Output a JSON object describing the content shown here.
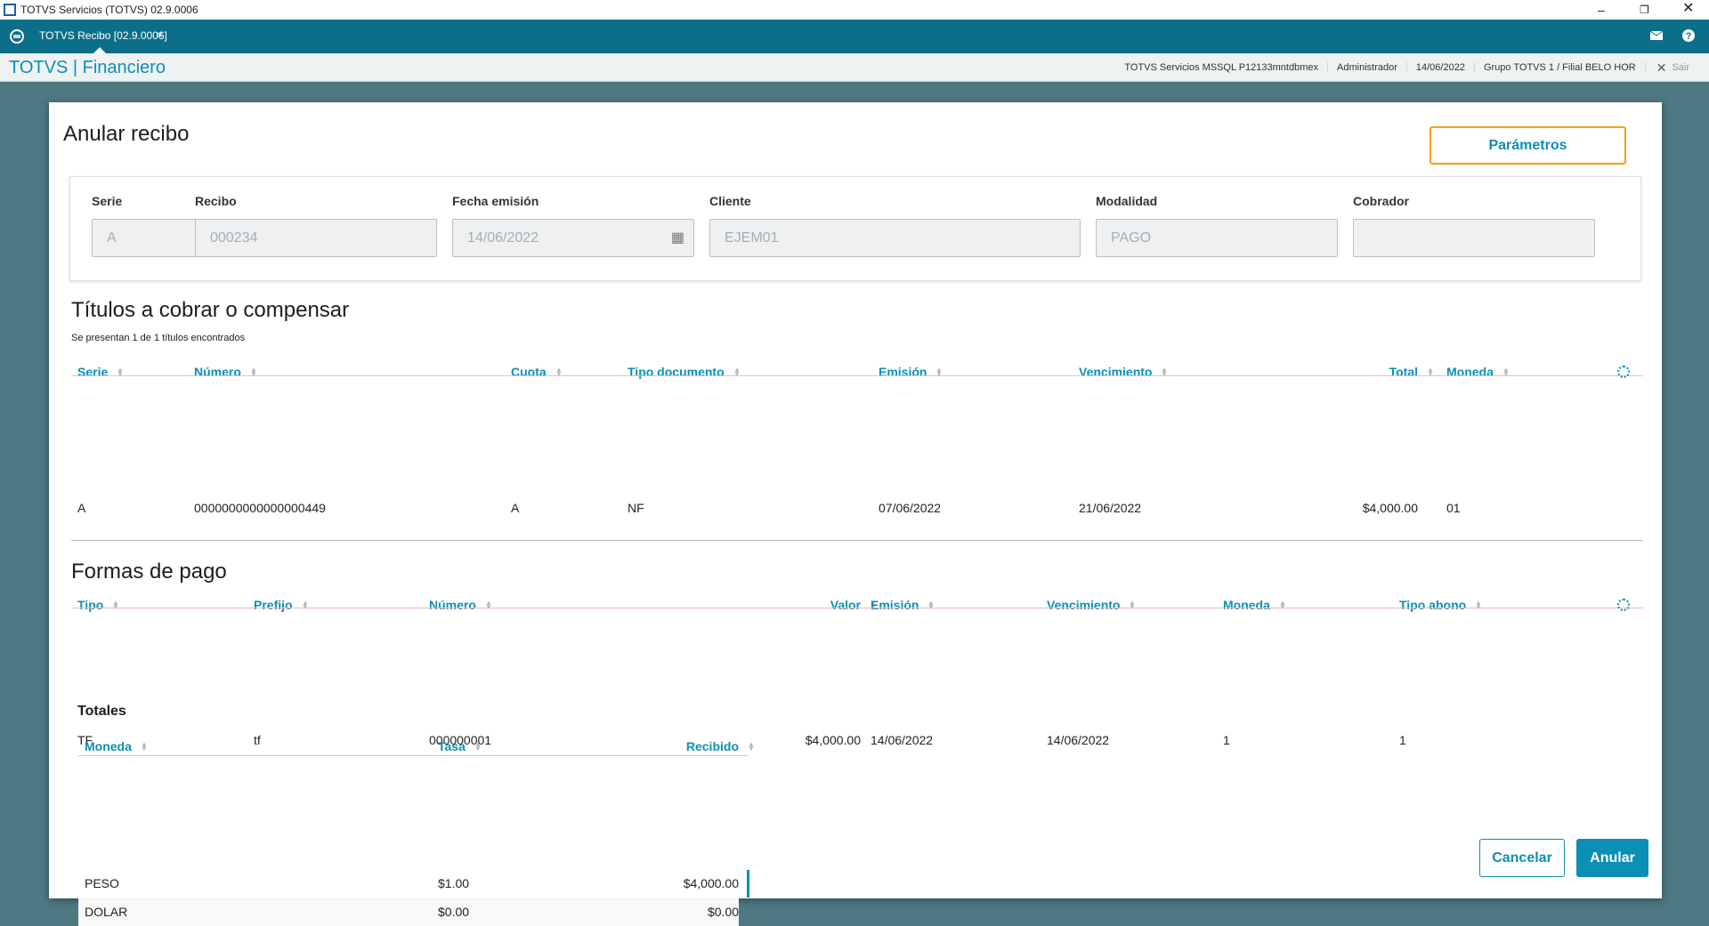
{
  "window": {
    "title": "TOTVS Servicios (TOTVS) 02.9.0006"
  },
  "tab": {
    "label": "TOTVS Recibo [02.9.0006]"
  },
  "header": {
    "brand": "TOTVS | Financiero",
    "info": [
      "TOTVS Servicios MSSQL P12133mntdbmex",
      "Administrador",
      "14/06/2022",
      "Grupo TOTVS 1 / Filial BELO HOR"
    ],
    "logout": "Sair"
  },
  "modal": {
    "title": "Anular recibo",
    "params_button": "Parámetros",
    "fields": [
      {
        "label": "Serie",
        "value": "A"
      },
      {
        "label": "Recibo",
        "value": "000234"
      },
      {
        "label": "Fecha emisión",
        "value": "14/06/2022"
      },
      {
        "label": "Cliente",
        "value": "EJEM01"
      },
      {
        "label": "Modalidad",
        "value": "PAGO"
      },
      {
        "label": "Cobrador"
      }
    ],
    "titulos": {
      "title": "Títulos a cobrar o compensar",
      "subtitle": "Se presentan 1 de 1 títulos encontrados",
      "columns": [
        "Serie",
        "Número",
        "Cuota",
        "Tipo documento",
        "Emisión",
        "Vencimiento",
        "Total",
        "Moneda"
      ],
      "rows": [
        [
          "A",
          "0000000000000000449",
          "A",
          "NF",
          "07/06/2022",
          "21/06/2022",
          "$4,000.00",
          "01"
        ]
      ]
    },
    "formas": {
      "title": "Formas de pago",
      "columns": [
        "Tipo",
        "Prefijo",
        "Número",
        "Valor",
        "Emisión",
        "Vencimiento",
        "Moneda",
        "Tipo abono"
      ],
      "rows": [
        [
          "TF",
          "tf",
          "000000001",
          "$4,000.00",
          "14/06/2022",
          "14/06/2022",
          "1",
          "1"
        ]
      ]
    },
    "totales": {
      "title": "Totales",
      "columns": [
        "Moneda",
        "Tasa",
        "Recibido"
      ],
      "rows": [
        [
          "PESO",
          "$1.00",
          "$4,000.00"
        ],
        [
          "DOLAR",
          "$0.00",
          "$0.00"
        ]
      ]
    },
    "buttons": {
      "cancel": "Cancelar",
      "confirm": "Anular"
    }
  }
}
